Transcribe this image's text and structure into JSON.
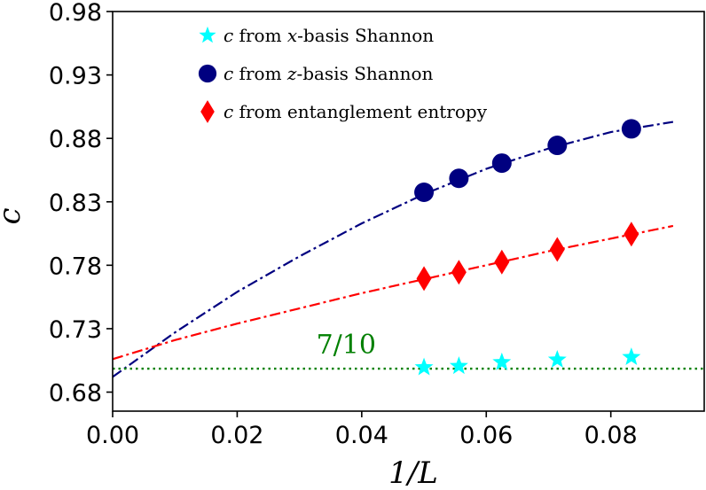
{
  "chart_data": {
    "type": "line",
    "xlabel": "1/L",
    "ylabel": "c",
    "xlim": [
      0.0,
      0.095
    ],
    "ylim": [
      0.665,
      0.98
    ],
    "x_ticks": [
      "0.00",
      "0.02",
      "0.04",
      "0.06",
      "0.08"
    ],
    "x_tick_values": [
      0.0,
      0.02,
      0.04,
      0.06,
      0.08
    ],
    "y_ticks": [
      "0.68",
      "0.73",
      "0.78",
      "0.83",
      "0.88",
      "0.93",
      "0.98"
    ],
    "y_tick_values": [
      0.68,
      0.73,
      0.78,
      0.83,
      0.88,
      0.93,
      0.98
    ],
    "grid": false,
    "legend_position": "top-left",
    "series": [
      {
        "name": "c from x-basis Shannon",
        "marker": "star",
        "color": "#00FFFF",
        "x": [
          0.05,
          0.0556,
          0.0625,
          0.0714,
          0.0833
        ],
        "y": [
          0.6995,
          0.7005,
          0.7035,
          0.7055,
          0.7075
        ]
      },
      {
        "name": "c from z-basis Shannon",
        "marker": "circle",
        "color": "#000080",
        "x": [
          0.05,
          0.0556,
          0.0625,
          0.0714,
          0.0833
        ],
        "y": [
          0.8375,
          0.8485,
          0.8605,
          0.8745,
          0.8875
        ]
      },
      {
        "name": "c from entanglement entropy",
        "marker": "diamond",
        "color": "#FF0000",
        "x": [
          0.05,
          0.0556,
          0.0625,
          0.0714,
          0.0833
        ],
        "y": [
          0.7695,
          0.7745,
          0.7825,
          0.7925,
          0.8045
        ]
      }
    ],
    "fits": [
      {
        "color": "#000080",
        "style": "dashdot",
        "x": [
          0.0,
          0.01,
          0.02,
          0.03,
          0.04,
          0.05,
          0.06,
          0.07,
          0.08,
          0.09
        ],
        "y": [
          0.692,
          0.727,
          0.759,
          0.787,
          0.813,
          0.836,
          0.856,
          0.872,
          0.885,
          0.893
        ]
      },
      {
        "color": "#FF0000",
        "style": "dashdot",
        "x": [
          0.0,
          0.01,
          0.02,
          0.03,
          0.04,
          0.05,
          0.06,
          0.07,
          0.08,
          0.09
        ],
        "y": [
          0.706,
          0.721,
          0.734,
          0.746,
          0.758,
          0.769,
          0.78,
          0.791,
          0.801,
          0.811
        ]
      }
    ],
    "reference_line": {
      "y": 0.6985,
      "color": "#008000",
      "style": "dotted"
    },
    "annotations": [
      {
        "text": "7/10",
        "x": 0.0375,
        "y": 0.7105,
        "color": "#008000"
      }
    ]
  }
}
